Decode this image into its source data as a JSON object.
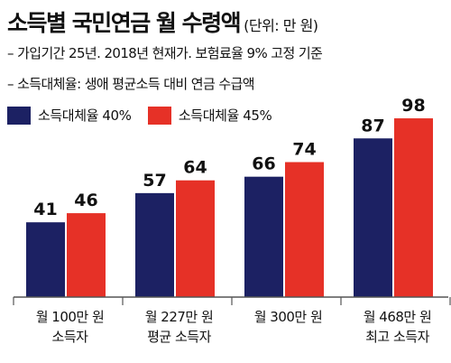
{
  "header": {
    "title": "소득별 국민연금 월 수령액",
    "unit": "(단위: 만 원)"
  },
  "notes": [
    "– 가입기간 25년. 2018년 현재가. 보험료율 9% 고정 기준",
    "– 소득대체율: 생애 평균소득 대비 연금 수급액"
  ],
  "chart_data": {
    "type": "bar",
    "categories": [
      [
        "월 100만 원",
        "소득자"
      ],
      [
        "월 227만 원",
        "평균 소득자"
      ],
      [
        "월 300만 원",
        ""
      ],
      [
        "월 468만 원",
        "최고 소득자"
      ]
    ],
    "series": [
      {
        "name": "소득대체율 40%",
        "values": [
          41,
          57,
          66,
          87
        ],
        "color": "#1c2163"
      },
      {
        "name": "소득대체율 45%",
        "values": [
          46,
          64,
          74,
          98
        ],
        "color": "#e63127"
      }
    ],
    "ylim": [
      0,
      100
    ],
    "grid": false,
    "legend": "top-left"
  }
}
